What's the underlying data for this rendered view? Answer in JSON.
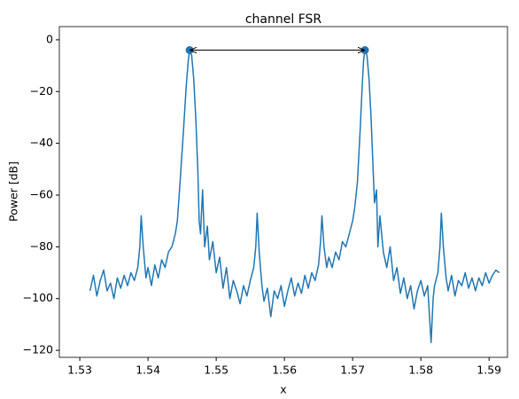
{
  "chart_data": {
    "type": "line",
    "title": "channel FSR",
    "xlabel": "x",
    "ylabel": "Power [dB]",
    "xlim": [
      1.527,
      1.5927
    ],
    "ylim": [
      -122.7,
      5.1
    ],
    "xticks": [
      1.53,
      1.54,
      1.55,
      1.56,
      1.57,
      1.58,
      1.59
    ],
    "yticks": [
      0,
      {
        "value": -20,
        "label": "−20"
      },
      {
        "value": -40,
        "label": "−40"
      },
      {
        "value": -60,
        "label": "−60"
      },
      {
        "value": -80,
        "label": "−80"
      },
      {
        "value": -100,
        "label": "−100"
      },
      {
        "value": -120,
        "label": "−120"
      }
    ],
    "color": "#1f77b4",
    "x": [
      1.5315,
      1.532,
      1.5325,
      1.533,
      1.5335,
      1.534,
      1.5345,
      1.535,
      1.5355,
      1.536,
      1.5365,
      1.537,
      1.5375,
      1.538,
      1.5385,
      1.5388,
      1.539,
      1.5393,
      1.5397,
      1.54,
      1.5405,
      1.541,
      1.5415,
      1.542,
      1.5425,
      1.543,
      1.5435,
      1.544,
      1.5443,
      1.5447,
      1.5452,
      1.5456,
      1.5459,
      1.5461,
      1.5464,
      1.5467,
      1.547,
      1.5473,
      1.5475,
      1.5477,
      1.548,
      1.5483,
      1.5487,
      1.549,
      1.5495,
      1.55,
      1.5505,
      1.551,
      1.5515,
      1.552,
      1.5525,
      1.553,
      1.5535,
      1.554,
      1.5545,
      1.555,
      1.5555,
      1.5558,
      1.556,
      1.5563,
      1.5567,
      1.557,
      1.5575,
      1.558,
      1.5585,
      1.559,
      1.5595,
      1.56,
      1.5605,
      1.561,
      1.5615,
      1.562,
      1.5625,
      1.563,
      1.5635,
      1.564,
      1.5645,
      1.565,
      1.5653,
      1.5655,
      1.5658,
      1.5662,
      1.5665,
      1.567,
      1.5675,
      1.568,
      1.5685,
      1.569,
      1.5695,
      1.57,
      1.5703,
      1.5707,
      1.5711,
      1.5714,
      1.5716,
      1.5718,
      1.5721,
      1.5724,
      1.5727,
      1.573,
      1.5732,
      1.5735,
      1.5737,
      1.574,
      1.5745,
      1.575,
      1.5755,
      1.576,
      1.5765,
      1.577,
      1.5775,
      1.578,
      1.5785,
      1.579,
      1.5795,
      1.58,
      1.5805,
      1.581,
      1.5815,
      1.5818,
      1.582,
      1.5825,
      1.5828,
      1.583,
      1.5833,
      1.5837,
      1.584,
      1.5845,
      1.585,
      1.5855,
      1.586,
      1.5865,
      1.587,
      1.5875,
      1.588,
      1.5885,
      1.589,
      1.5895,
      1.59,
      1.5905,
      1.591,
      1.5915
    ],
    "values": [
      -97,
      -91,
      -99,
      -93,
      -89,
      -97,
      -94,
      -100,
      -92,
      -96,
      -91,
      -95,
      -90,
      -93,
      -88,
      -80,
      -68,
      -80,
      -92,
      -88,
      -95,
      -87,
      -92,
      -85,
      -88,
      -82,
      -80,
      -75,
      -70,
      -55,
      -35,
      -18,
      -8,
      -4,
      -6,
      -15,
      -30,
      -50,
      -70,
      -75,
      -58,
      -80,
      -72,
      -85,
      -78,
      -90,
      -84,
      -96,
      -88,
      -100,
      -93,
      -97,
      -102,
      -95,
      -99,
      -93,
      -88,
      -80,
      -67,
      -82,
      -95,
      -101,
      -96,
      -107,
      -97,
      -100,
      -95,
      -103,
      -97,
      -92,
      -99,
      -94,
      -98,
      -91,
      -96,
      -90,
      -93,
      -87,
      -78,
      -68,
      -80,
      -88,
      -84,
      -88,
      -82,
      -85,
      -78,
      -80,
      -75,
      -70,
      -65,
      -55,
      -35,
      -18,
      -8,
      -4,
      -6,
      -15,
      -30,
      -50,
      -63,
      -58,
      -80,
      -68,
      -82,
      -88,
      -80,
      -93,
      -88,
      -98,
      -92,
      -100,
      -95,
      -104,
      -97,
      -93,
      -99,
      -95,
      -117,
      -100,
      -95,
      -90,
      -80,
      -67,
      -80,
      -92,
      -97,
      -91,
      -99,
      -93,
      -95,
      -90,
      -96,
      -92,
      -97,
      -92,
      -95,
      -90,
      -94,
      -91,
      -89,
      -90
    ],
    "peaks": {
      "x": [
        1.5461,
        1.5718
      ],
      "values": [
        -4,
        -4
      ]
    }
  }
}
